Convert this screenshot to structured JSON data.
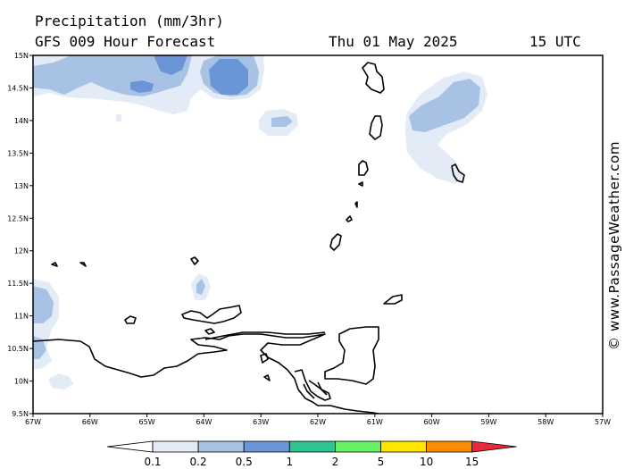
{
  "header": {
    "title_line1": "Precipitation (mm/3hr)",
    "title_line2": "GFS 009 Hour Forecast",
    "date": "Thu 01 May 2025",
    "time": "15 UTC"
  },
  "credit": "© www.PassageWeather.com",
  "map": {
    "lat_labels": [
      "15N",
      "14.5N",
      "14N",
      "13.5N",
      "13N",
      "12.5N",
      "12N",
      "11.5N",
      "11N",
      "10.5N",
      "10N",
      "9.5N"
    ],
    "lon_labels": [
      "67W",
      "66W",
      "65W",
      "64W",
      "63W",
      "62W",
      "61W",
      "60W",
      "59W",
      "58W",
      "57W"
    ],
    "lat_range": [
      9.5,
      15
    ],
    "lon_range": [
      -67,
      -57
    ]
  },
  "legend": {
    "values": [
      "0.1",
      "0.2",
      "0.5",
      "1",
      "2",
      "5",
      "10",
      "15"
    ],
    "colors": [
      "#ffffff",
      "#e3ebf7",
      "#a8c2e5",
      "#6a95d6",
      "#2fc48f",
      "#66f066",
      "#ffe600",
      "#ff8c00",
      "#e8283c"
    ]
  }
}
